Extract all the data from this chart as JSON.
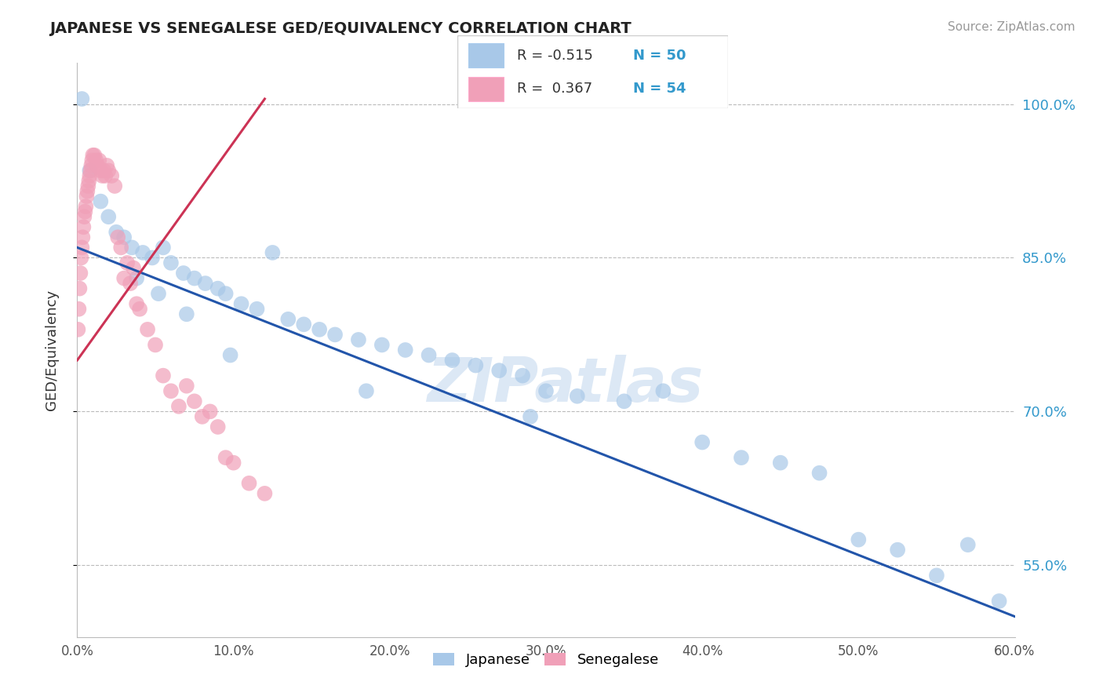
{
  "title": "JAPANESE VS SENEGALESE GED/EQUIVALENCY CORRELATION CHART",
  "source": "Source: ZipAtlas.com",
  "ylabel": "GED/Equivalency",
  "xlim": [
    0.0,
    60.0
  ],
  "ylim": [
    48.0,
    104.0
  ],
  "ytick_positions": [
    55.0,
    70.0,
    85.0,
    100.0
  ],
  "ytick_labels": [
    "55.0%",
    "70.0%",
    "85.0%",
    "100.0%"
  ],
  "watermark": "ZIPatlas",
  "blue_color": "#A8C8E8",
  "pink_color": "#F0A0B8",
  "line_blue": "#2255AA",
  "line_pink": "#CC3355",
  "japanese_x": [
    0.3,
    0.8,
    1.5,
    2.0,
    2.5,
    3.0,
    3.5,
    4.2,
    4.8,
    5.5,
    6.0,
    6.8,
    7.5,
    8.2,
    9.0,
    9.5,
    10.5,
    11.5,
    12.5,
    13.5,
    14.5,
    15.5,
    16.5,
    18.0,
    19.5,
    21.0,
    22.5,
    24.0,
    25.5,
    27.0,
    28.5,
    30.0,
    32.0,
    35.0,
    37.5,
    40.0,
    42.5,
    45.0,
    47.5,
    50.0,
    52.5,
    55.0,
    57.0,
    59.0,
    3.8,
    5.2,
    7.0,
    9.8,
    18.5,
    29.0
  ],
  "japanese_y": [
    100.5,
    93.5,
    90.5,
    89.0,
    87.5,
    87.0,
    86.0,
    85.5,
    85.0,
    86.0,
    84.5,
    83.5,
    83.0,
    82.5,
    82.0,
    81.5,
    80.5,
    80.0,
    85.5,
    79.0,
    78.5,
    78.0,
    77.5,
    77.0,
    76.5,
    76.0,
    75.5,
    75.0,
    74.5,
    74.0,
    73.5,
    72.0,
    71.5,
    71.0,
    72.0,
    67.0,
    65.5,
    65.0,
    64.0,
    57.5,
    56.5,
    54.0,
    57.0,
    51.5,
    83.0,
    81.5,
    79.5,
    75.5,
    72.0,
    69.5
  ],
  "senegalese_x": [
    0.05,
    0.1,
    0.15,
    0.2,
    0.25,
    0.3,
    0.35,
    0.4,
    0.45,
    0.5,
    0.55,
    0.6,
    0.65,
    0.7,
    0.75,
    0.8,
    0.85,
    0.9,
    0.95,
    1.0,
    1.1,
    1.2,
    1.3,
    1.4,
    1.5,
    1.6,
    1.7,
    1.8,
    1.9,
    2.0,
    2.2,
    2.4,
    2.6,
    2.8,
    3.0,
    3.2,
    3.4,
    3.6,
    3.8,
    4.0,
    4.5,
    5.0,
    5.5,
    6.0,
    6.5,
    7.0,
    7.5,
    8.0,
    8.5,
    9.0,
    9.5,
    10.0,
    11.0,
    12.0
  ],
  "senegalese_y": [
    78.0,
    80.0,
    82.0,
    83.5,
    85.0,
    86.0,
    87.0,
    88.0,
    89.0,
    89.5,
    90.0,
    91.0,
    91.5,
    92.0,
    92.5,
    93.0,
    93.5,
    94.0,
    94.5,
    95.0,
    95.0,
    94.5,
    94.0,
    94.5,
    93.5,
    93.0,
    93.5,
    93.0,
    94.0,
    93.5,
    93.0,
    92.0,
    87.0,
    86.0,
    83.0,
    84.5,
    82.5,
    84.0,
    80.5,
    80.0,
    78.0,
    76.5,
    73.5,
    72.0,
    70.5,
    72.5,
    71.0,
    69.5,
    70.0,
    68.5,
    65.5,
    65.0,
    63.0,
    62.0
  ],
  "jap_line_x0": 0.0,
  "jap_line_x1": 60.0,
  "jap_line_y0": 86.0,
  "jap_line_y1": 50.0,
  "sen_line_x0": 0.0,
  "sen_line_x1": 12.0,
  "sen_line_y0": 75.0,
  "sen_line_y1": 100.5
}
